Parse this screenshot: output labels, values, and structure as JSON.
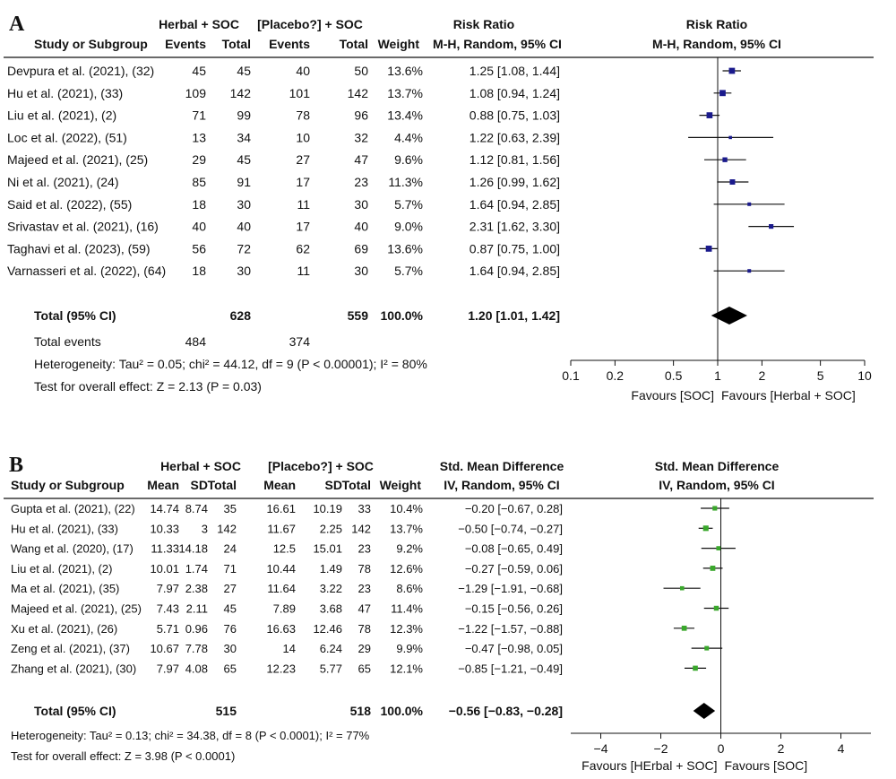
{
  "chart_data": [
    {
      "type": "table",
      "panel": "A",
      "headers": {
        "group1": "Herbal + SOC",
        "group2": "[Placebo?] + SOC",
        "effect_title": "Risk Ratio",
        "effect_method": "M-H, Random, 95% CI",
        "plot_title": "Risk Ratio",
        "plot_method": "M-H, Random, 95% CI",
        "columns": [
          "Study or Subgroup",
          "Events",
          "Total",
          "Events",
          "Total",
          "Weight"
        ]
      },
      "rows": [
        {
          "study": "Devpura et al. (2021), (32)",
          "e1": "45",
          "t1": "45",
          "e2": "40",
          "t2": "50",
          "weight": "13.6%",
          "ci_text": "1.25 [1.08, 1.44]",
          "est": 1.25,
          "lo": 1.08,
          "hi": 1.44,
          "w": 13.6
        },
        {
          "study": "Hu et al. (2021), (33)",
          "e1": "109",
          "t1": "142",
          "e2": "101",
          "t2": "142",
          "weight": "13.7%",
          "ci_text": "1.08 [0.94, 1.24]",
          "est": 1.08,
          "lo": 0.94,
          "hi": 1.24,
          "w": 13.7
        },
        {
          "study": "Liu et al. (2021), (2)",
          "e1": "71",
          "t1": "99",
          "e2": "78",
          "t2": "96",
          "weight": "13.4%",
          "ci_text": "0.88 [0.75, 1.03]",
          "est": 0.88,
          "lo": 0.75,
          "hi": 1.03,
          "w": 13.4
        },
        {
          "study": "Loc et al. (2022), (51)",
          "e1": "13",
          "t1": "34",
          "e2": "10",
          "t2": "32",
          "weight": "4.4%",
          "ci_text": "1.22 [0.63, 2.39]",
          "est": 1.22,
          "lo": 0.63,
          "hi": 2.39,
          "w": 4.4
        },
        {
          "study": "Majeed et al. (2021), (25)",
          "e1": "29",
          "t1": "45",
          "e2": "27",
          "t2": "47",
          "weight": "9.6%",
          "ci_text": "1.12 [0.81, 1.56]",
          "est": 1.12,
          "lo": 0.81,
          "hi": 1.56,
          "w": 9.6
        },
        {
          "study": "Ni et al. (2021), (24)",
          "e1": "85",
          "t1": "91",
          "e2": "17",
          "t2": "23",
          "weight": "11.3%",
          "ci_text": "1.26 [0.99, 1.62]",
          "est": 1.26,
          "lo": 0.99,
          "hi": 1.62,
          "w": 11.3
        },
        {
          "study": "Said et al. (2022), (55)",
          "e1": "18",
          "t1": "30",
          "e2": "11",
          "t2": "30",
          "weight": "5.7%",
          "ci_text": "1.64 [0.94, 2.85]",
          "est": 1.64,
          "lo": 0.94,
          "hi": 2.85,
          "w": 5.7
        },
        {
          "study": "Srivastav et al. (2021), (16)",
          "e1": "40",
          "t1": "40",
          "e2": "17",
          "t2": "40",
          "weight": "9.0%",
          "ci_text": "2.31 [1.62, 3.30]",
          "est": 2.31,
          "lo": 1.62,
          "hi": 3.3,
          "w": 9.0
        },
        {
          "study": "Taghavi et al. (2023), (59)",
          "e1": "56",
          "t1": "72",
          "e2": "62",
          "t2": "69",
          "weight": "13.6%",
          "ci_text": "0.87 [0.75, 1.00]",
          "est": 0.87,
          "lo": 0.75,
          "hi": 1.0,
          "w": 13.6
        },
        {
          "study": "Varnasseri et al. (2022), (64)",
          "e1": "18",
          "t1": "30",
          "e2": "11",
          "t2": "30",
          "weight": "5.7%",
          "ci_text": "1.64 [0.94, 2.85]",
          "est": 1.64,
          "lo": 0.94,
          "hi": 2.85,
          "w": 5.7
        }
      ],
      "total": {
        "label": "Total (95% CI)",
        "n1": "628",
        "n2": "559",
        "weight": "100.0%",
        "ci_text": "1.20 [1.01, 1.42]",
        "est": 1.2,
        "lo": 1.01,
        "hi": 1.42
      },
      "total_events": {
        "label": "Total events",
        "g1": "484",
        "g2": "374"
      },
      "heterogeneity": "Heterogeneity: Tau² = 0.05; chi² = 44.12, df = 9 (P < 0.00001); I² = 80%",
      "overall_effect": "Test for overall effect: Z = 2.13 (P = 0.03)",
      "x_scale": "log",
      "xlim": [
        0.1,
        10
      ],
      "null_value": 1,
      "ticks": [
        0.1,
        0.2,
        0.5,
        1,
        2,
        5,
        10
      ],
      "tick_labels": [
        "0.1",
        "0.2",
        "0.5",
        "1",
        "2",
        "5",
        "10"
      ],
      "favours_left": "Favours [SOC]",
      "favours_right": "Favours [Herbal + SOC]",
      "marker_color": "#1a1a8c"
    },
    {
      "type": "table",
      "panel": "B",
      "headers": {
        "group1": "Herbal + SOC",
        "group2": "[Placebo?] + SOC",
        "effect_title": "Std. Mean Difference",
        "effect_method": "IV, Random, 95% CI",
        "plot_title": "Std. Mean Difference",
        "plot_method": "IV, Random, 95% CI",
        "columns": [
          "Study or Subgroup",
          "Mean",
          "SD",
          "Total",
          "Mean",
          "SD",
          "Total",
          "Weight"
        ]
      },
      "rows": [
        {
          "study": "Gupta et al. (2021), (22)",
          "m1": "14.74",
          "sd1": "8.74",
          "t1": "35",
          "m2": "16.61",
          "sd2": "10.19",
          "t2": "33",
          "weight": "10.4%",
          "ci_text": "−0.20 [−0.67, 0.28]",
          "est": -0.2,
          "lo": -0.67,
          "hi": 0.28,
          "w": 10.4
        },
        {
          "study": "Hu et al. (2021), (33)",
          "m1": "10.33",
          "sd1": "3",
          "t1": "142",
          "m2": "11.67",
          "sd2": "2.25",
          "t2": "142",
          "weight": "13.7%",
          "ci_text": "−0.50 [−0.74, −0.27]",
          "est": -0.5,
          "lo": -0.74,
          "hi": -0.27,
          "w": 13.7
        },
        {
          "study": "Wang et al. (2020), (17)",
          "m1": "11.33",
          "sd1": "14.18",
          "t1": "24",
          "m2": "12.5",
          "sd2": "15.01",
          "t2": "23",
          "weight": "9.2%",
          "ci_text": "−0.08 [−0.65, 0.49]",
          "est": -0.08,
          "lo": -0.65,
          "hi": 0.49,
          "w": 9.2
        },
        {
          "study": "Liu et al. (2021), (2)",
          "m1": "10.01",
          "sd1": "1.74",
          "t1": "71",
          "m2": "10.44",
          "sd2": "1.49",
          "t2": "78",
          "weight": "12.6%",
          "ci_text": "−0.27 [−0.59, 0.06]",
          "est": -0.27,
          "lo": -0.59,
          "hi": 0.06,
          "w": 12.6
        },
        {
          "study": "Ma et al. (2021), (35)",
          "m1": "7.97",
          "sd1": "2.38",
          "t1": "27",
          "m2": "11.64",
          "sd2": "3.22",
          "t2": "23",
          "weight": "8.6%",
          "ci_text": "−1.29 [−1.91, −0.68]",
          "est": -1.29,
          "lo": -1.91,
          "hi": -0.68,
          "w": 8.6
        },
        {
          "study": "Majeed et al. (2021), (25)",
          "m1": "7.43",
          "sd1": "2.11",
          "t1": "45",
          "m2": "7.89",
          "sd2": "3.68",
          "t2": "47",
          "weight": "11.4%",
          "ci_text": "−0.15 [−0.56, 0.26]",
          "est": -0.15,
          "lo": -0.56,
          "hi": 0.26,
          "w": 11.4
        },
        {
          "study": "Xu et al. (2021), (26)",
          "m1": "5.71",
          "sd1": "0.96",
          "t1": "76",
          "m2": "16.63",
          "sd2": "12.46",
          "t2": "78",
          "weight": "12.3%",
          "ci_text": "−1.22 [−1.57, −0.88]",
          "est": -1.22,
          "lo": -1.57,
          "hi": -0.88,
          "w": 12.3
        },
        {
          "study": "Zeng et al. (2021), (37)",
          "m1": "10.67",
          "sd1": "7.78",
          "t1": "30",
          "m2": "14",
          "sd2": "6.24",
          "t2": "29",
          "weight": "9.9%",
          "ci_text": "−0.47 [−0.98, 0.05]",
          "est": -0.47,
          "lo": -0.98,
          "hi": 0.05,
          "w": 9.9
        },
        {
          "study": "Zhang et al. (2021), (30)",
          "m1": "7.97",
          "sd1": "4.08",
          "t1": "65",
          "m2": "12.23",
          "sd2": "5.77",
          "t2": "65",
          "weight": "12.1%",
          "ci_text": "−0.85 [−1.21, −0.49]",
          "est": -0.85,
          "lo": -1.21,
          "hi": -0.49,
          "w": 12.1
        }
      ],
      "total": {
        "label": "Total (95% CI)",
        "n1": "515",
        "n2": "518",
        "weight": "100.0%",
        "ci_text": "−0.56 [−0.83, −0.28]",
        "est": -0.56,
        "lo": -0.83,
        "hi": -0.28
      },
      "heterogeneity": "Heterogeneity: Tau² = 0.13; chi² = 34.38, df = 8 (P < 0.0001); I² = 77%",
      "overall_effect": "Test for overall effect: Z = 3.98 (P < 0.0001)",
      "x_scale": "linear",
      "xlim": [
        -5,
        5
      ],
      "null_value": 0,
      "ticks": [
        -4,
        -2,
        0,
        2,
        4
      ],
      "tick_labels": [
        "−4",
        "−2",
        "0",
        "2",
        "4"
      ],
      "favours_left": "Favours [HErbal + SOC]",
      "favours_right": "Favours [SOC]",
      "marker_color": "#3aa82c"
    }
  ]
}
